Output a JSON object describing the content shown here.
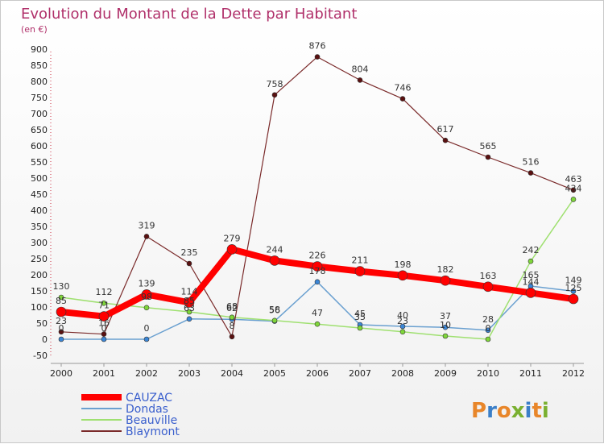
{
  "header": {
    "title": "Evolution du Montant de la Dette par Habitant",
    "subtitle": "(en €)"
  },
  "logo": {
    "text": "Proxiti",
    "colors": [
      "#e8862a",
      "#3b7fc8",
      "#e8862a",
      "#7ab030",
      "#3b7fc8",
      "#e8862a",
      "#7ab030"
    ]
  },
  "chart_data": {
    "type": "line",
    "title": "Evolution du Montant de la Dette par Habitant",
    "subtitle": "(en €)",
    "xlabel": "",
    "ylabel": "",
    "x": [
      "2000",
      "2001",
      "2002",
      "2003",
      "2004",
      "2005",
      "2006",
      "2007",
      "2008",
      "2009",
      "2010",
      "2011",
      "2012"
    ],
    "ylim": [
      -50,
      900
    ],
    "yticks": [
      -50,
      0,
      50,
      100,
      150,
      200,
      250,
      300,
      350,
      400,
      450,
      500,
      550,
      600,
      650,
      700,
      750,
      800,
      850,
      900
    ],
    "grid": false,
    "legend_position": "bottom-left",
    "series": [
      {
        "name": "CAUZAC",
        "color": "#ff0000",
        "values": [
          85,
          71,
          139,
          114,
          279,
          244,
          226,
          211,
          198,
          182,
          163,
          144,
          125
        ]
      },
      {
        "name": "Dondas",
        "color": "#4a8fc9",
        "values": [
          0,
          0,
          0,
          63,
          62,
          56,
          178,
          45,
          40,
          37,
          28,
          165,
          149
        ]
      },
      {
        "name": "Beauville",
        "color": "#88dd44",
        "values": [
          130,
          112,
          98,
          85,
          68,
          58,
          47,
          35,
          23,
          10,
          0,
          242,
          434
        ]
      },
      {
        "name": "Blaymont",
        "color": "#6b1a1a",
        "values": [
          23,
          16,
          319,
          235,
          8,
          758,
          876,
          804,
          746,
          617,
          565,
          516,
          463
        ]
      }
    ]
  }
}
